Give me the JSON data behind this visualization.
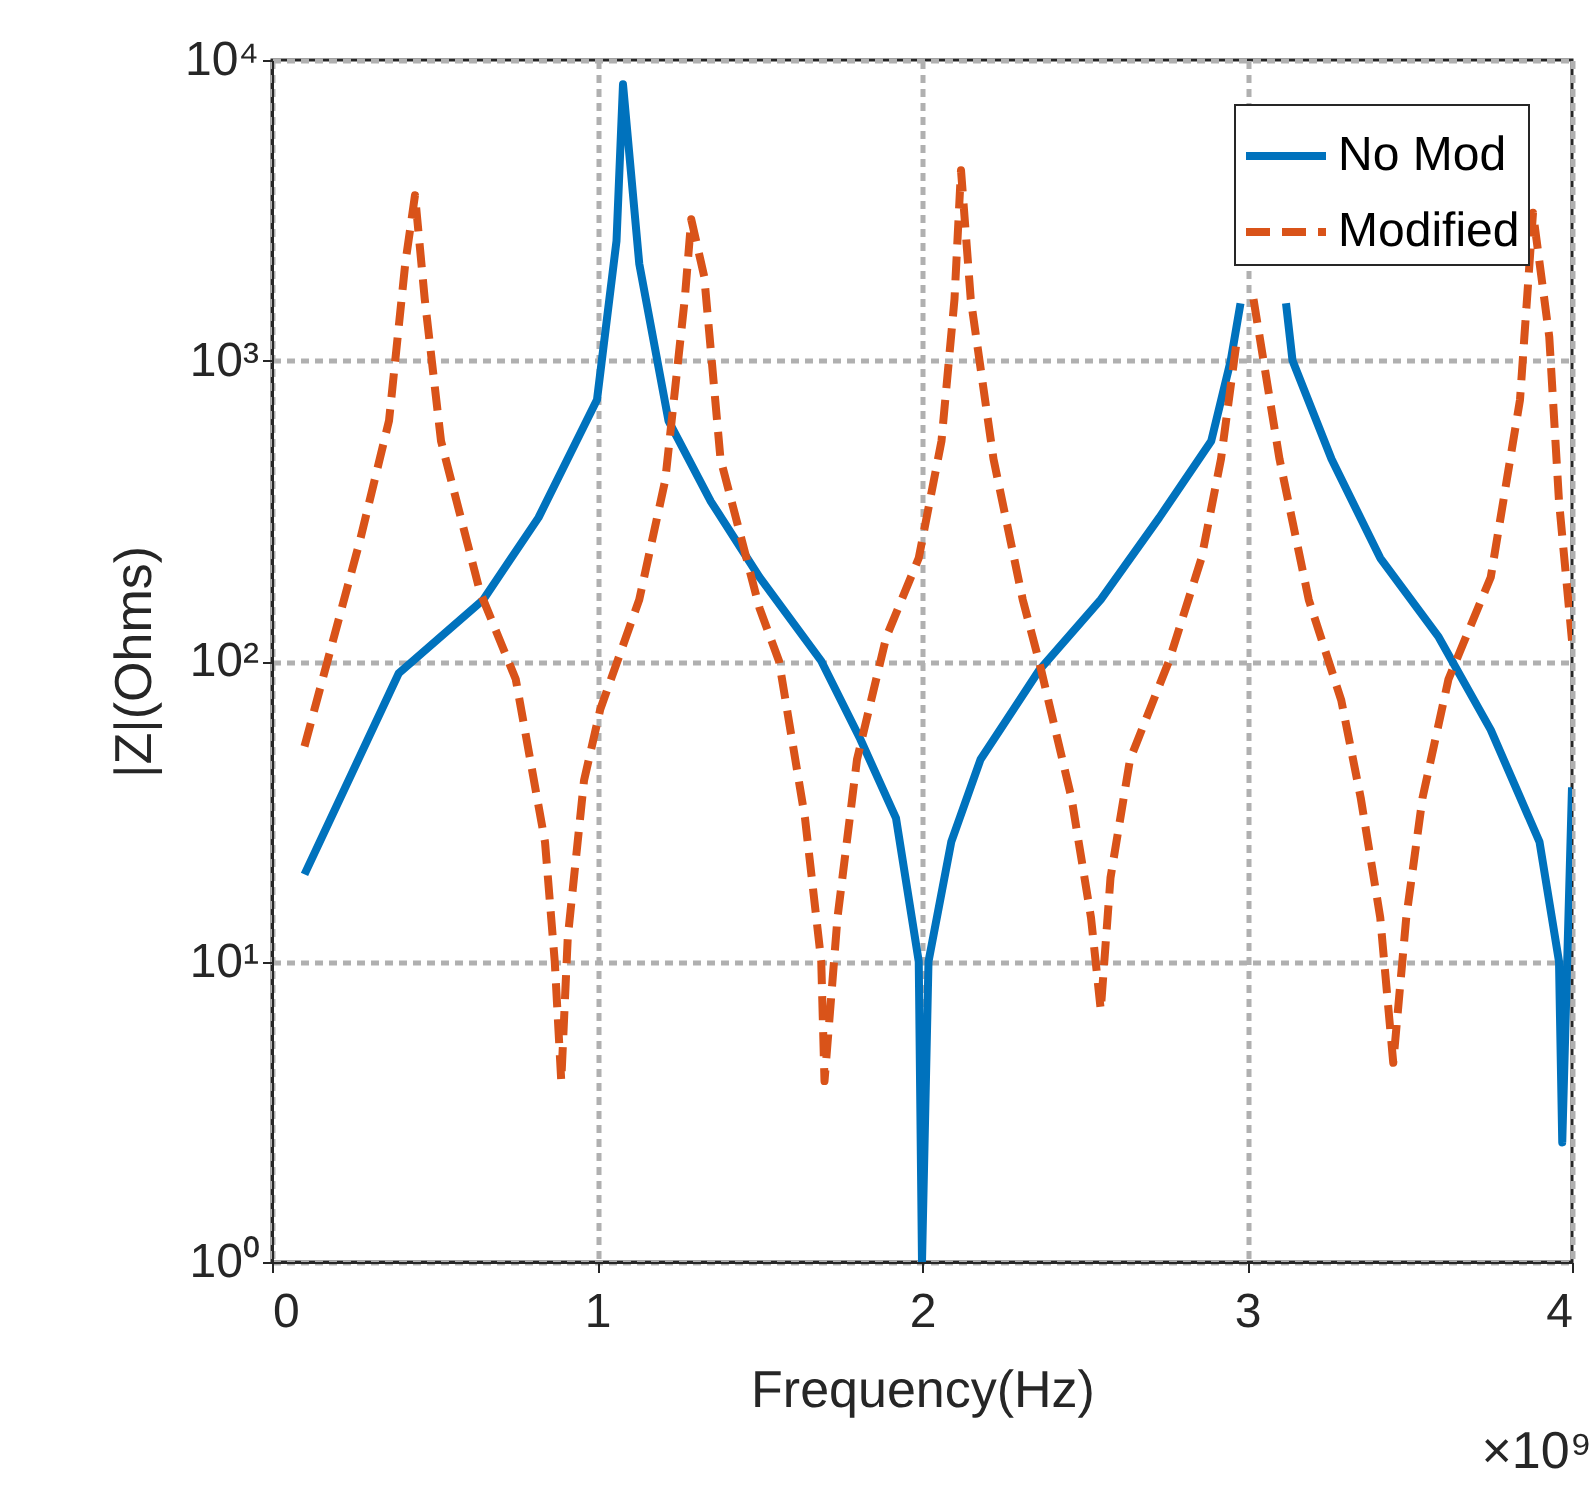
{
  "chart_data": {
    "type": "line",
    "xlabel": "Frequency(Hz)",
    "ylabel": "|Z|(Ohms)",
    "annotations": [
      "×10⁹"
    ],
    "xlim": [
      0,
      4
    ],
    "xticks": [
      0,
      1,
      2,
      3,
      4
    ],
    "ylim": [
      1,
      10000
    ],
    "log": "y",
    "yticks": [
      {
        "value": 1,
        "label": "10⁰"
      },
      {
        "value": 10,
        "label": "10¹"
      },
      {
        "value": 100,
        "label": "10²"
      },
      {
        "value": 1000,
        "label": "10³"
      },
      {
        "value": 10000,
        "label": "10⁴"
      }
    ],
    "grid": true,
    "legend": "top right",
    "series": [
      {
        "name": "No Mod",
        "color": "#0072bd",
        "line_style": "solid",
        "x": [
          0.1,
          0.39,
          0.65,
          0.82,
          1.0,
          1.06,
          1.08,
          1.13,
          1.22,
          1.35,
          1.5,
          1.69,
          1.81,
          1.92,
          1.99,
          2.0,
          2.02,
          2.09,
          2.18,
          2.36,
          2.55,
          2.73,
          2.89,
          2.95,
          2.98,
          3.05,
          3.12,
          3.14,
          3.26,
          3.41,
          3.59,
          3.75,
          3.9,
          3.96,
          3.97,
          4.0
        ],
        "values": [
          19.5,
          91,
          160,
          300,
          740,
          2500,
          8300,
          2100,
          630,
          340,
          190,
          100,
          55,
          30,
          10,
          1,
          10,
          25,
          47,
          93,
          160,
          300,
          540,
          1000,
          1550,
          null,
          1550,
          1000,
          470,
          220,
          120,
          59,
          25,
          10,
          2.5,
          38
        ]
      },
      {
        "name": "Modified",
        "color": "#d95319",
        "line_style": "dashed",
        "x": [
          0.1,
          0.27,
          0.36,
          0.41,
          0.44,
          0.47,
          0.52,
          0.64,
          0.75,
          0.84,
          0.87,
          0.89,
          0.91,
          0.96,
          1.01,
          1.13,
          1.21,
          1.27,
          1.29,
          1.33,
          1.38,
          1.5,
          1.56,
          1.64,
          1.69,
          1.7,
          1.74,
          1.8,
          1.89,
          1.99,
          2.06,
          2.1,
          2.12,
          2.15,
          2.22,
          2.31,
          2.36,
          2.46,
          2.52,
          2.55,
          2.58,
          2.64,
          2.76,
          2.86,
          2.92,
          2.97,
          3.0,
          3.02,
          3.1,
          3.19,
          3.29,
          3.35,
          3.41,
          3.45,
          3.49,
          3.54,
          3.62,
          3.75,
          3.84,
          3.88,
          3.93,
          3.96,
          4.0
        ],
        "values": [
          52,
          250,
          630,
          2100,
          3550,
          1600,
          540,
          170,
          87,
          25,
          10,
          4,
          12,
          40,
          69,
          160,
          400,
          1600,
          2950,
          1900,
          470,
          150,
          100,
          30,
          10,
          4,
          14,
          47,
          120,
          220,
          540,
          1600,
          4300,
          1600,
          470,
          160,
          100,
          35,
          14,
          6.9,
          19,
          47,
          100,
          220,
          470,
          1200,
          null,
          1600,
          470,
          160,
          74,
          35,
          14,
          4.6,
          14,
          35,
          87,
          190,
          740,
          3100,
          1200,
          340,
          117
        ]
      }
    ]
  }
}
